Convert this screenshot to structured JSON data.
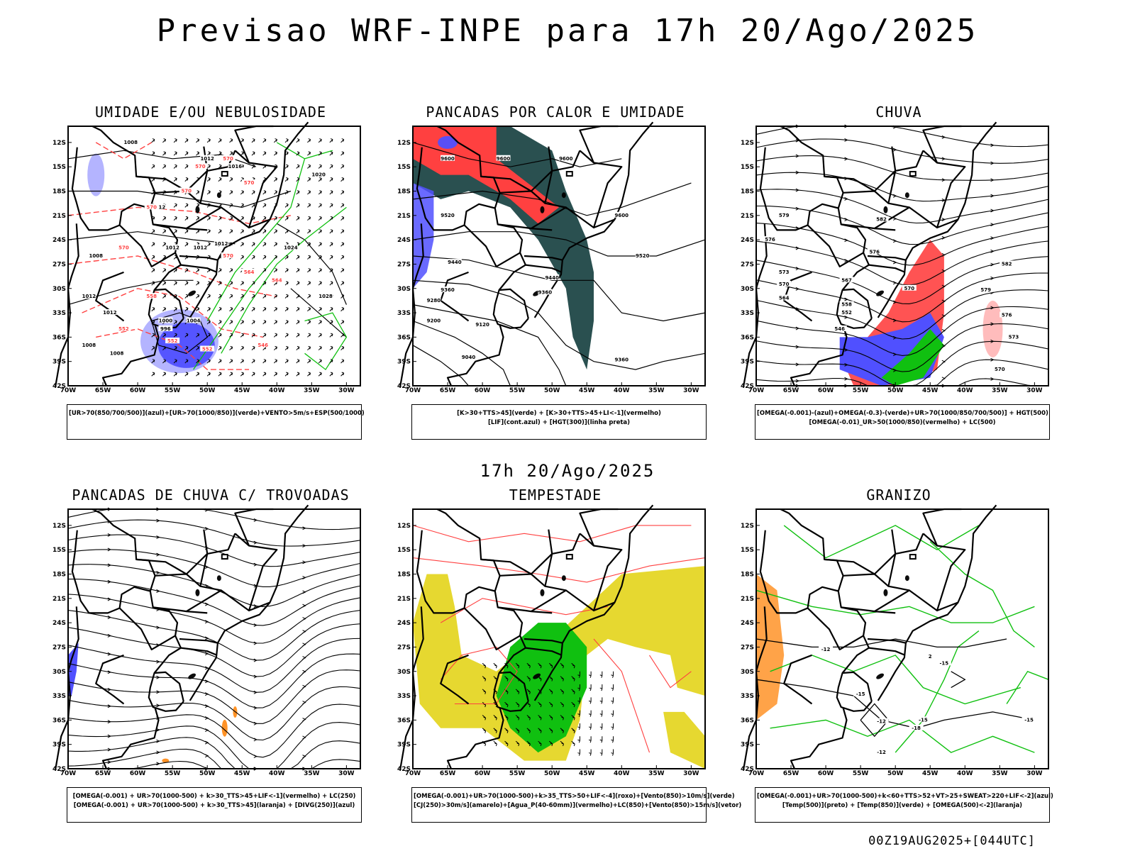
{
  "title": "Previsao WRF-INPE  para 17h 20/Ago/2025",
  "mid_time": "17h 20/Ago/2025",
  "footer": "00Z19AUG2025+[044UTC]",
  "axes": {
    "lat_labels": [
      "12S",
      "15S",
      "18S",
      "21S",
      "24S",
      "27S",
      "30S",
      "33S",
      "36S",
      "39S",
      "42S"
    ],
    "lon_labels": [
      "70W",
      "65W",
      "60W",
      "55W",
      "50W",
      "45W",
      "40W",
      "35W",
      "30W"
    ]
  },
  "colors": {
    "red": "#ff4040",
    "blue": "#5050ff",
    "lightblue": "#b0b0ff",
    "green": "#10c010",
    "darkteal": "#2a5050",
    "yellow": "#e6d830",
    "orange": "#ff8c1a"
  },
  "panels": [
    {
      "id": "umidade",
      "title": "UMIDADE E/OU NEBULOSIDADE",
      "legend": [
        "[UR>70(850/700/500)](azul)+[UR>70(1000/850)](verde)+VENTO>5m/s+ESP(500/1000)"
      ],
      "contour_labels": [
        "1008",
        "1012",
        "1016",
        "1020",
        "1012",
        "1008",
        "1012",
        "1024",
        "1012",
        "1012",
        "1012",
        "1008",
        "1028",
        "1000",
        "1004",
        "996",
        "1008",
        "1012"
      ],
      "red_labels": [
        "570",
        "570",
        "570",
        "570",
        "570",
        "570",
        "570",
        "564",
        "558",
        "552",
        "552",
        "552",
        "546",
        "564"
      ]
    },
    {
      "id": "pancadas",
      "title": "PANCADAS POR CALOR E UMIDADE",
      "legend": [
        "[K>30+TTS>45](verde) + [K>30+TTS>45+LI<-1](vermelho)",
        "[LIF](cont.azul) + [HGT(300)](linha preta)"
      ],
      "contour_labels": [
        "9600",
        "9600",
        "9600",
        "9520",
        "9600",
        "9520",
        "9440",
        "9440",
        "9360",
        "9360",
        "9280",
        "9200",
        "9120",
        "9040",
        "9360"
      ]
    },
    {
      "id": "chuva",
      "title": "CHUVA",
      "legend": [
        "[OMEGA(-0.001)-(azul)+OMEGA(-0.3)-(verde)+UR>70(1000/850/700/500)] + HGT(500)",
        "[OMEGA(-0.01)_UR>50(1000/850)(vermelho) + LC(500)"
      ],
      "contour_labels": [
        "582",
        "576",
        "579",
        "576",
        "573",
        "570",
        "567",
        "564",
        "558",
        "552",
        "546",
        "570",
        "582",
        "579",
        "576",
        "573",
        "570"
      ]
    },
    {
      "id": "trovoadas",
      "title": "PANCADAS DE CHUVA C/ TROVOADAS",
      "legend": [
        "[OMEGA(-0.001) + UR>70(1000-500) + k>30_TTS>45+LIF<-1](vermelho) + LC(250)",
        "[OMEGA(-0.001) + UR>70(1000-500) + k>30_TTS>45](laranja) + [DIVG(250)](azul)"
      ]
    },
    {
      "id": "tempestade",
      "title": "TEMPESTADE",
      "legend": [
        "[OMEGA(-0.001)+UR>70(1000-500)+k>35_TTS>50+LIF<-4](roxo)+[Vento(850)>10m/s](verde)",
        "[CJ(250)>30m/s](amarelo)+[Agua_P(40-60mm)](vermelho)+LC(850)+[Vento(850)>15m/s](vetor)"
      ]
    },
    {
      "id": "granizo",
      "title": "GRANIZO",
      "legend": [
        "[OMEGA(-0.001)+UR>70(1000-500)+k<60+TTS>52+VT>25+SWEAT>220+LIF<-2](azul)",
        "[Temp(500)](preto) + [Temp(850)](verde) + [OMEGA(500)<-2](laranja)"
      ],
      "contour_labels": [
        "-12",
        "-15",
        "-12",
        "-18",
        "-15",
        "-12",
        "2",
        "-15",
        "-15"
      ]
    }
  ]
}
